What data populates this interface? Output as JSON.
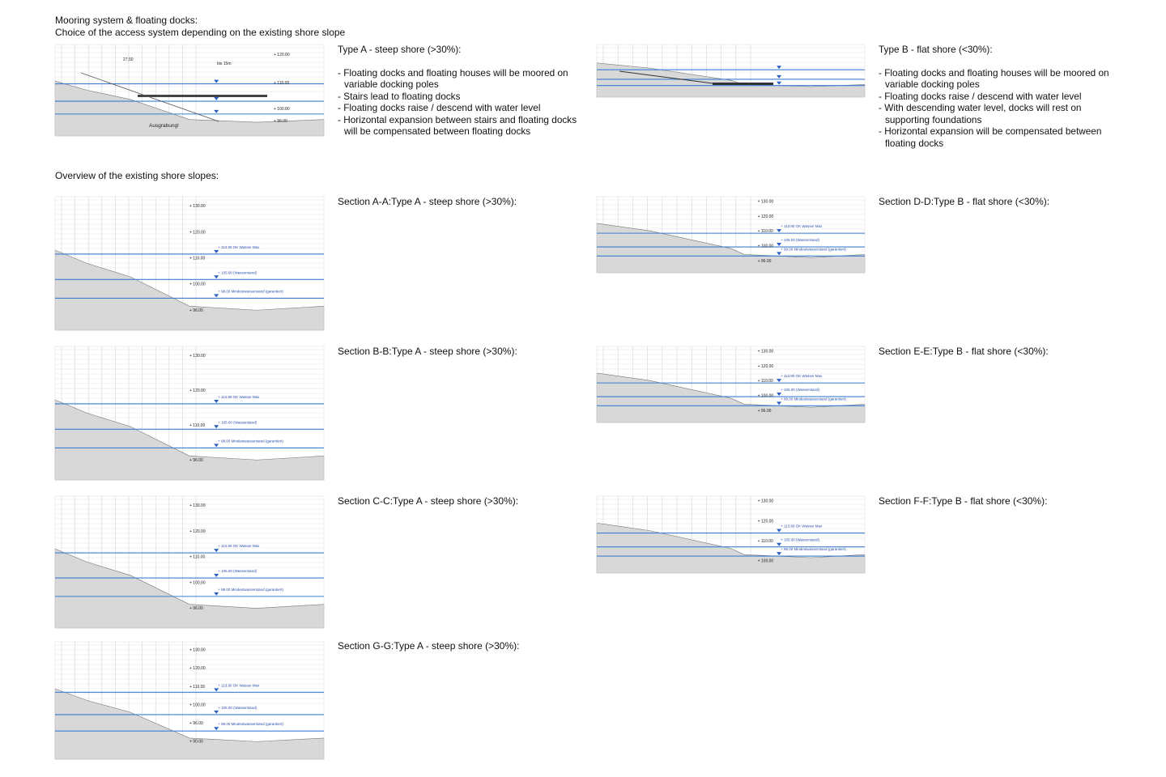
{
  "header": {
    "title": "Mooring system & floating docks:",
    "subtitle": "Choice of the access system depending on the existing shore slope"
  },
  "types": [
    {
      "title": "Type A - steep shore (>30%):",
      "bullets": [
        "- Floating docks and floating houses will be moored on variable docking poles",
        "- Stairs lead to floating docks",
        "- Floating docks raise / descend with water level",
        "- Horizontal expansion between stairs and floating docks will be compensated between floating docks"
      ],
      "drawing_labels": [
        "bis 15m",
        "27,50",
        "Ausgrabung!",
        "+ 120.00",
        "+ 110.00",
        "+ 100.00",
        "+ 96.00"
      ]
    },
    {
      "title": "Type B - flat shore (<30%):",
      "bullets": [
        "- Floating docks and floating houses will be moored on variable docking poles",
        "- Floating docks raise / descend with water level",
        "- With descending water level, docks will rest on supporting foundations",
        "- Horizontal expansion will be compensated between floating docks"
      ],
      "drawing_labels": []
    }
  ],
  "overview_title": "Overview of the existing shore slopes:",
  "sections": [
    {
      "title": "Section A-A:Type A - steep shore (>30%):",
      "elevations": [
        "+ 130.00",
        "+ 120.00",
        "+ 110.00",
        "+ 100.00",
        "+ 96.00"
      ],
      "levels": [
        "+ 113.90 OK Wasser Max",
        "+ 105.00 (Wasserstand)",
        "+ 98.00 Mindestwasserstand (garantiert)"
      ]
    },
    {
      "title": "Section D-D:Type B - flat shore (<30%):",
      "elevations": [
        "+ 130.00",
        "+ 120.00",
        "+ 110.00",
        "+ 100.00",
        "+ 96.00"
      ],
      "levels": [
        "+ 113.90 OK Wasser Max",
        "+ 105.00 (Wasserstand)",
        "+ 98.00 Mindestwasserstand (garantiert)"
      ]
    },
    {
      "title": "Section B-B:Type A - steep shore (>30%):",
      "elevations": [
        "+ 130.00",
        "+ 120.00",
        "+ 110.00",
        "+ 96.00"
      ],
      "levels": [
        "+ 113.90 OK Wasser Max",
        "+ 105.00 (Wasserstand)",
        "+ 98.00 Mindestwasserstand (garantiert)"
      ]
    },
    {
      "title": "Section E-E:Type B - flat shore (<30%):",
      "elevations": [
        "+ 130.00",
        "+ 120.00",
        "+ 110.00",
        "+ 100.00",
        "+ 96.00"
      ],
      "levels": [
        "+ 113.90 OK Wasser Max",
        "+ 105.00 (Wasserstand)",
        "+ 98.00 Mindestwasserstand (garantiert)"
      ]
    },
    {
      "title": "Section C-C:Type A - steep shore (>30%):",
      "elevations": [
        "+ 130.00",
        "+ 120.00",
        "+ 110.00",
        "+ 100.00",
        "+ 96.00"
      ],
      "levels": [
        "+ 113.90 OK Wasser Max",
        "+ 105.00 (Wasserstand)",
        "+ 98.00 Mindestwasserstand (garantiert)"
      ]
    },
    {
      "title": "Section F-F:Type B - flat shore (<30%):",
      "elevations": [
        "+ 130.00",
        "+ 120.00",
        "+ 110.00",
        "+ 100.00"
      ],
      "levels": [
        "+ 113.90 OK Wasser Max",
        "+ 105.00 (Wasserstand)",
        "+ 98.00 Mindestwasserstand (garantiert)"
      ]
    },
    {
      "title": "Section G-G:Type A - steep shore (>30%):",
      "elevations": [
        "+ 130.00",
        "+ 120.00",
        "+ 110.00",
        "+ 100.00",
        "+ 96.00",
        "+ 90.00"
      ],
      "levels": [
        "+ 113.90 OK Wasser Max",
        "+ 105.00 (Wasserstand)",
        "+ 98.00 Mindestwasserstand (garantiert)"
      ]
    }
  ]
}
